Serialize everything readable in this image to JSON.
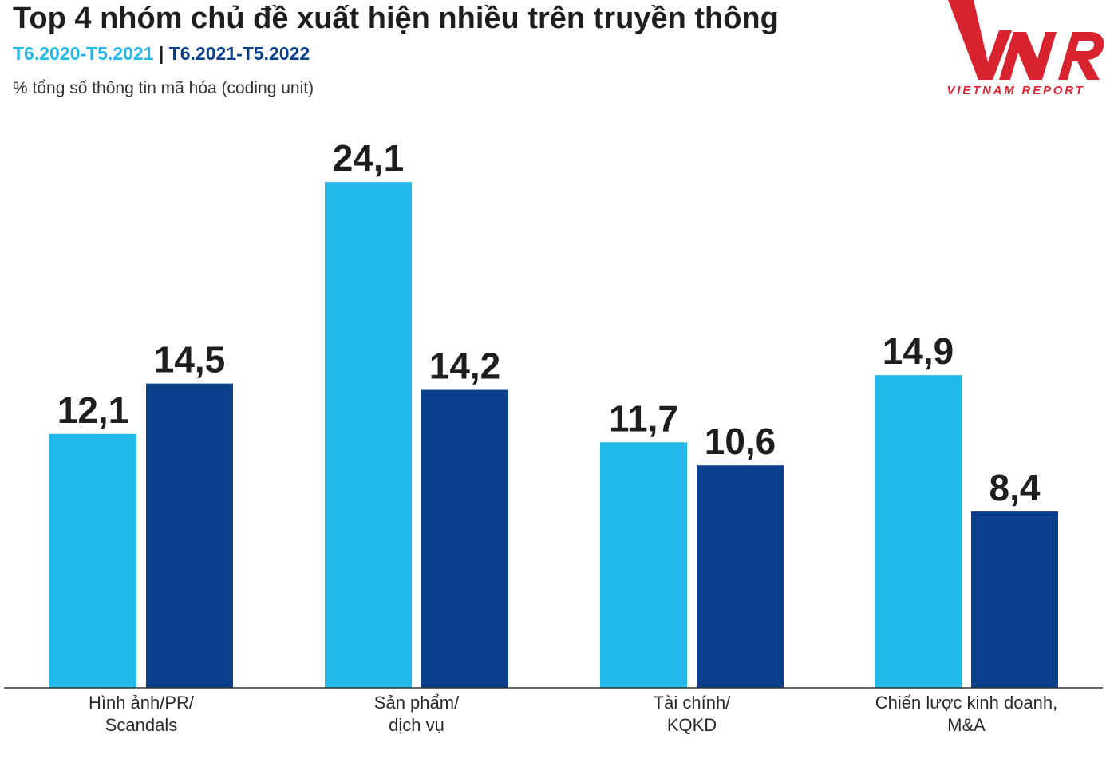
{
  "chart_data": {
    "type": "bar",
    "title": "Top 4 nhóm chủ đề xuất hiện nhiều trên truyền thông",
    "subtitle_series_1": "T6.2020-T5.2021",
    "subtitle_separator": "|",
    "subtitle_series_2": "T6.2021-T5.2022",
    "unit_note": "% tổng số thông tin mã hóa (coding unit)",
    "xlabel": "",
    "ylabel": "",
    "ylim": [
      0,
      26
    ],
    "grid": false,
    "categories": [
      [
        "Hình ảnh/PR/",
        "Scandals"
      ],
      [
        "Sản phẩm/",
        "dịch vụ"
      ],
      [
        "Tài chính/",
        "KQKD"
      ],
      [
        "Chiến lược kinh doanh,",
        "M&A"
      ]
    ],
    "series": [
      {
        "name": "T6.2020-T5.2021",
        "color": "#22b9ea",
        "values": [
          12.1,
          24.1,
          11.7,
          14.9
        ],
        "labels": [
          "12,1",
          "24,1",
          "11,7",
          "14,9"
        ]
      },
      {
        "name": "T6.2021-T5.2022",
        "color": "#0a3f8c",
        "values": [
          14.5,
          14.2,
          10.6,
          8.4
        ],
        "labels": [
          "14,5",
          "14,2",
          "10,6",
          "8,4"
        ]
      }
    ]
  },
  "logo": {
    "mark": "VNR",
    "text": "VIETNAM REPORT",
    "color": "#d9232e"
  }
}
